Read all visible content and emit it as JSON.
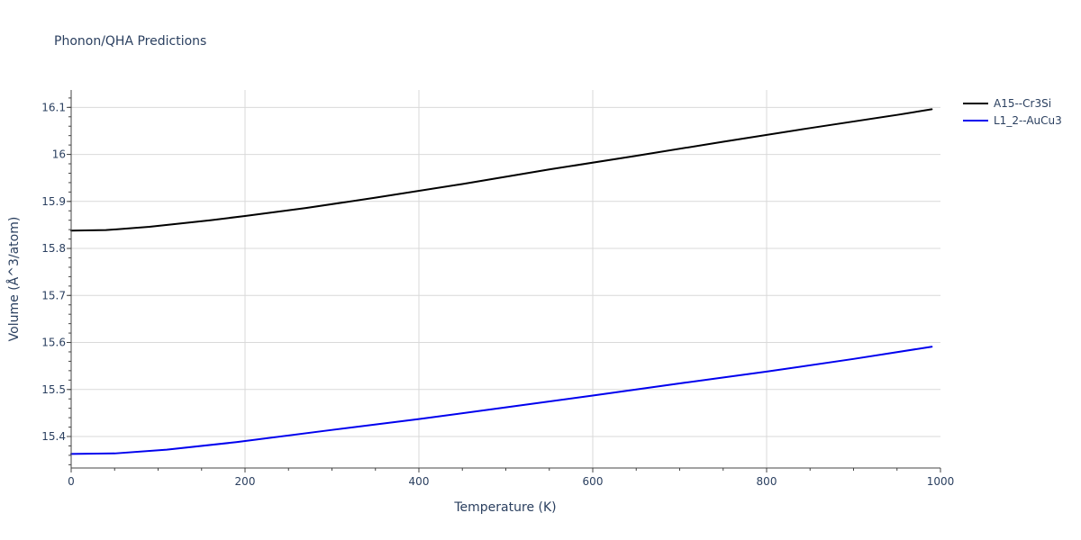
{
  "chart_data": {
    "type": "line",
    "title": "Phonon/QHA Predictions",
    "xlabel": "Temperature (K)",
    "ylabel": "Volume (Å^3/atom)",
    "xlim": [
      0,
      1000
    ],
    "ylim": [
      15.333,
      16.137
    ],
    "x_ticks": [
      0,
      200,
      400,
      600,
      800,
      1000
    ],
    "x_tick_labels": [
      "0",
      "200",
      "400",
      "600",
      "800",
      "1000"
    ],
    "y_ticks": [
      15.4,
      15.5,
      15.6,
      15.7,
      15.8,
      15.9,
      16.0,
      16.1
    ],
    "y_tick_labels": [
      "15.4",
      "15.5",
      "15.6",
      "15.7",
      "15.8",
      "15.9",
      "16",
      "16.1"
    ],
    "grid": true,
    "legend_position": "top-right",
    "series": [
      {
        "name": "A15--Cr3Si",
        "color": "#000000",
        "x": [
          0,
          40,
          90,
          160,
          200,
          270,
          350,
          450,
          550,
          650,
          750,
          850,
          950,
          990
        ],
        "y": [
          15.838,
          15.839,
          15.846,
          15.86,
          15.869,
          15.886,
          15.908,
          15.937,
          15.968,
          15.997,
          16.027,
          16.056,
          16.084,
          16.096
        ]
      },
      {
        "name": "L1_2--AuCu3",
        "color": "#0000ee",
        "x": [
          0,
          50,
          110,
          190,
          300,
          400,
          500,
          600,
          700,
          800,
          900,
          990
        ],
        "y": [
          15.363,
          15.364,
          15.372,
          15.388,
          15.414,
          15.437,
          15.462,
          15.487,
          15.513,
          15.538,
          15.565,
          15.591
        ]
      }
    ]
  }
}
